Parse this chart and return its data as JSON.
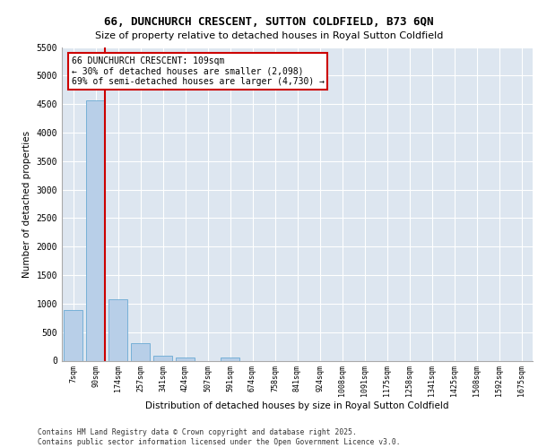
{
  "title_line1": "66, DUNCHURCH CRESCENT, SUTTON COLDFIELD, B73 6QN",
  "title_line2": "Size of property relative to detached houses in Royal Sutton Coldfield",
  "xlabel": "Distribution of detached houses by size in Royal Sutton Coldfield",
  "ylabel": "Number of detached properties",
  "categories": [
    "7sqm",
    "90sqm",
    "174sqm",
    "257sqm",
    "341sqm",
    "424sqm",
    "507sqm",
    "591sqm",
    "674sqm",
    "758sqm",
    "841sqm",
    "924sqm",
    "1008sqm",
    "1091sqm",
    "1175sqm",
    "1258sqm",
    "1341sqm",
    "1425sqm",
    "1508sqm",
    "1592sqm",
    "1675sqm"
  ],
  "values": [
    890,
    4570,
    1080,
    300,
    85,
    55,
    0,
    60,
    0,
    0,
    0,
    0,
    0,
    0,
    0,
    0,
    0,
    0,
    0,
    0,
    0
  ],
  "bar_color": "#b8cfe8",
  "bar_edge_color": "#6aaad4",
  "red_line_x": 1.43,
  "annotation_line1": "66 DUNCHURCH CRESCENT: 109sqm",
  "annotation_line2": "← 30% of detached houses are smaller (2,098)",
  "annotation_line3": "69% of semi-detached houses are larger (4,730) →",
  "annotation_box_color": "#ffffff",
  "annotation_box_edge": "#cc0000",
  "ylim": [
    0,
    5500
  ],
  "yticks": [
    0,
    500,
    1000,
    1500,
    2000,
    2500,
    3000,
    3500,
    4000,
    4500,
    5000,
    5500
  ],
  "background_color": "#dde6f0",
  "footer_line1": "Contains HM Land Registry data © Crown copyright and database right 2025.",
  "footer_line2": "Contains public sector information licensed under the Open Government Licence v3.0."
}
